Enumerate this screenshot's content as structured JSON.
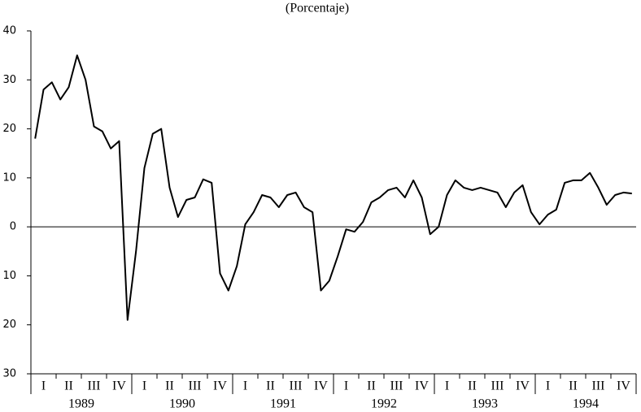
{
  "chart_data": {
    "type": "line",
    "title": "(Porcentaje)",
    "categories": [
      null,
      "I",
      null,
      null,
      "II",
      null,
      null,
      "III",
      null,
      null,
      "IV",
      null,
      null,
      "I",
      null,
      null,
      "II",
      null,
      null,
      "III",
      null,
      null,
      "IV",
      null,
      null,
      "I",
      null,
      null,
      "II",
      null,
      null,
      "III",
      null,
      null,
      "IV",
      null,
      null,
      "I",
      null,
      null,
      "II",
      null,
      null,
      "III",
      null,
      null,
      "IV",
      null,
      null,
      "I",
      null,
      null,
      "II",
      null,
      null,
      "III",
      null,
      null,
      "IV",
      null,
      null,
      "I",
      null,
      null,
      "II",
      null,
      null,
      "III",
      null,
      null,
      "IV",
      null
    ],
    "years": [
      "1989",
      "1990",
      "1991",
      "1992",
      "1993",
      "1994"
    ],
    "series": [
      {
        "color": "#000000",
        "values": [
          18,
          28,
          29.5,
          26,
          28.5,
          35,
          30,
          20.5,
          19.5,
          16,
          17.5,
          -19,
          -5,
          12,
          19,
          20,
          8,
          2,
          5.5,
          6,
          9.7,
          9,
          -9.5,
          -13,
          -8,
          0.5,
          3,
          6.5,
          6,
          4,
          6.5,
          7,
          4,
          3,
          -13,
          -11,
          -6,
          -0.5,
          -1,
          1,
          5,
          6,
          7.5,
          8,
          6,
          9.5,
          6,
          -1.5,
          0,
          6.5,
          9.5,
          8,
          7.5,
          8,
          7.5,
          7,
          4,
          7,
          8.5,
          3,
          0.5,
          2.5,
          3.5,
          9,
          9.5,
          9.5,
          11,
          8,
          4.5,
          6.5,
          7,
          6.8
        ]
      }
    ],
    "ylim": [
      -30,
      40
    ],
    "yticks": [
      {
        "value": -30,
        "label": "30"
      },
      {
        "value": -20,
        "label": "20"
      },
      {
        "value": -10,
        "label": "10"
      },
      0,
      10,
      20,
      30,
      40
    ]
  }
}
